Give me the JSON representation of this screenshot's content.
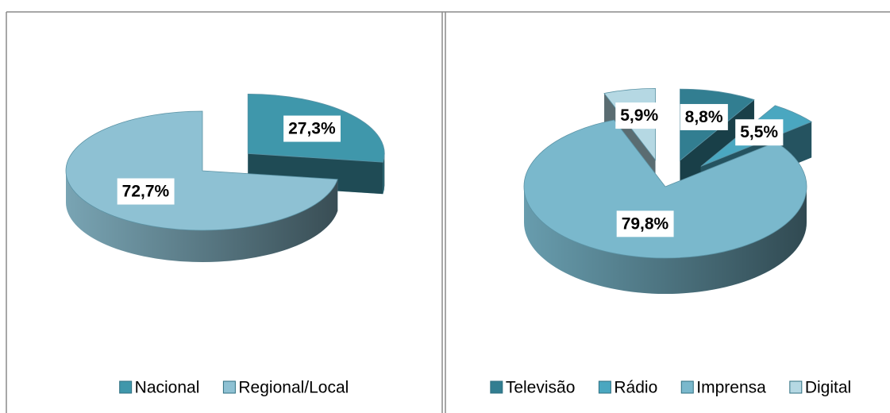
{
  "chart_data": [
    {
      "type": "pie",
      "categories": [
        "Nacional",
        "Regional/Local"
      ],
      "values": [
        27.3,
        72.7
      ],
      "value_labels": [
        "27,3%",
        "72,7%"
      ],
      "colors": [
        "#3f97ab",
        "#8ec1d3"
      ],
      "legend": "bottom"
    },
    {
      "type": "pie",
      "categories": [
        "Televisão",
        "Rádio",
        "Imprensa",
        "Digital"
      ],
      "values": [
        8.8,
        5.5,
        79.8,
        5.9
      ],
      "value_labels": [
        "8,8%",
        "5,5%",
        "79,8%",
        "5,9%"
      ],
      "colors": [
        "#327e91",
        "#4aa7c0",
        "#7ab8cc",
        "#b5d8e3"
      ],
      "legend": "bottom"
    }
  ]
}
